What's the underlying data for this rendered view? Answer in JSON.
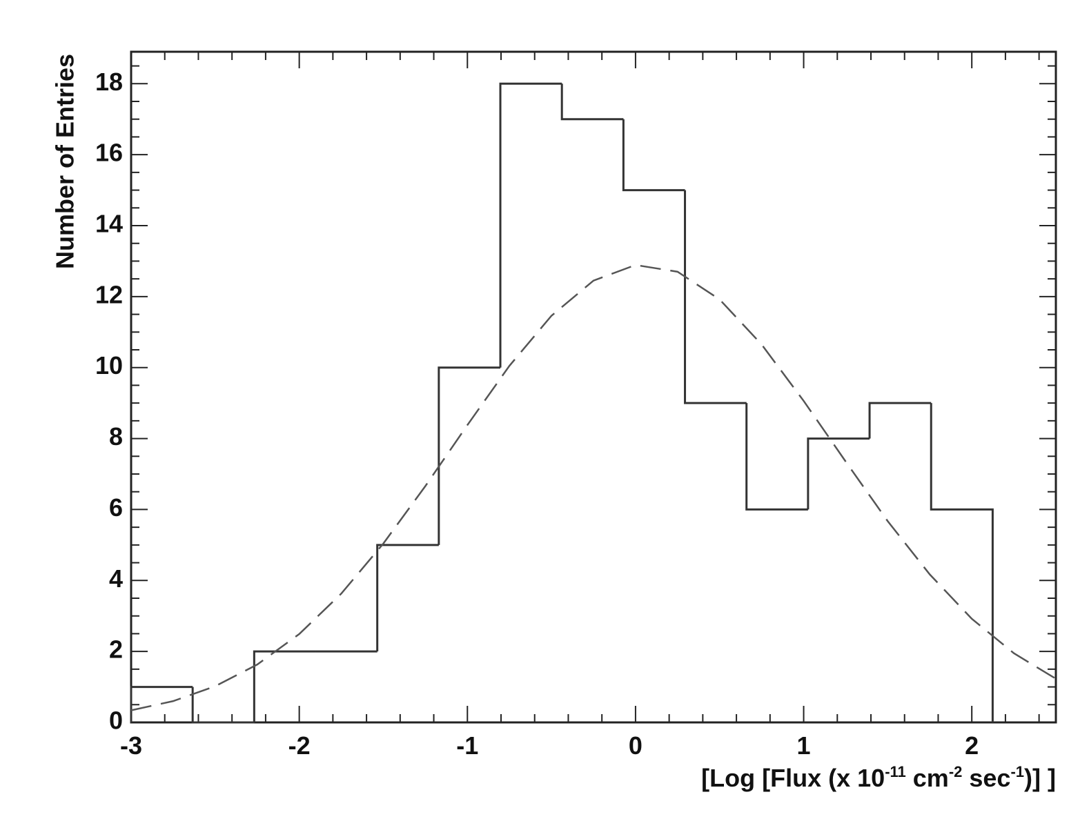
{
  "chart_data": {
    "type": "histogram",
    "ylabel": "Number of Entries",
    "xlabel": [
      "[Log [Flux (x 10",
      "-11",
      " cm",
      "-2",
      " sec",
      "-1",
      ")] ]"
    ],
    "bins": [
      -3,
      -2.634,
      -2.268,
      -1.902,
      -1.536,
      -1.17,
      -0.804,
      -0.438,
      -0.072,
      0.294,
      0.66,
      1.026,
      1.392,
      1.758,
      2.124
    ],
    "values": [
      1,
      0,
      2,
      2,
      5,
      10,
      18,
      17,
      15,
      9,
      6,
      8,
      9,
      6
    ],
    "color": "#333333",
    "fit": {
      "color": "#555555",
      "x": [
        -3,
        -2.75,
        -2.5,
        -2.25,
        -2,
        -1.75,
        -1.5,
        -1.25,
        -1,
        -0.75,
        -0.5,
        -0.25,
        0,
        0.25,
        0.5,
        0.75,
        1,
        1.25,
        1.5,
        1.75,
        2,
        2.25,
        2.5
      ],
      "values": [
        0.34,
        0.6,
        1.02,
        1.63,
        2.49,
        3.63,
        5.04,
        6.66,
        8.38,
        10.05,
        11.46,
        12.45,
        12.89,
        12.7,
        11.92,
        10.65,
        9.06,
        7.35,
        5.67,
        4.17,
        2.92,
        1.95,
        1.23
      ]
    },
    "xlim": [
      -3,
      2.5
    ],
    "xticks": [
      -3,
      -2,
      -1,
      0,
      1,
      2
    ],
    "ylim": [
      0,
      18.9
    ],
    "yticks": [
      0,
      2,
      4,
      6,
      8,
      10,
      12,
      14,
      16,
      18
    ],
    "grid": false
  }
}
